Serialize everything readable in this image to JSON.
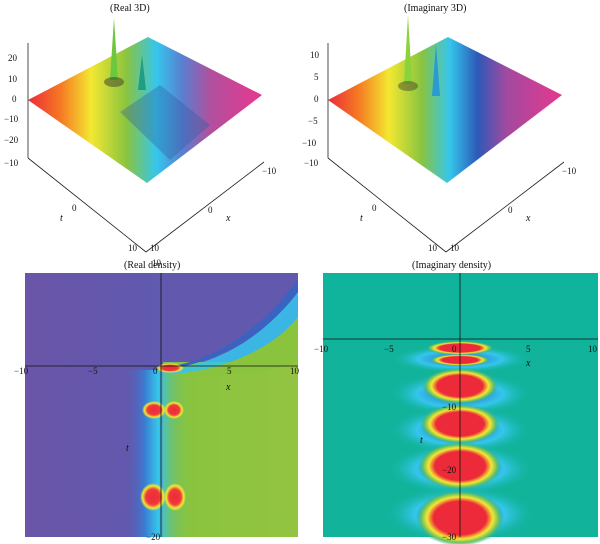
{
  "panels": {
    "real3d": {
      "title": "(Real 3D)",
      "z_ticks": [
        "20",
        "10",
        "0",
        "−10",
        "−20"
      ],
      "t_ticks": [
        "−10",
        "0",
        "10"
      ],
      "x_ticks": [
        "−10",
        "0",
        "10"
      ],
      "t_label": "t",
      "x_label": "x"
    },
    "imag3d": {
      "title": "(Imaginary 3D)",
      "z_ticks": [
        "10",
        "5",
        "0",
        "−5",
        "−10"
      ],
      "t_ticks": [
        "−10",
        "0",
        "10"
      ],
      "x_ticks": [
        "−10",
        "0",
        "10"
      ],
      "t_label": "t",
      "x_label": "x"
    },
    "realdens": {
      "title": "(Real density)",
      "x_ticks": [
        "−10",
        "−5",
        "0",
        "5",
        "10"
      ],
      "y_top": "10",
      "y_bottom": "−20",
      "x_label": "x",
      "t_label": "t"
    },
    "imagdens": {
      "title": "(Imaginary density)",
      "x_ticks": [
        "−10",
        "−5",
        "0",
        "5",
        "10"
      ],
      "y_ticks": [
        "−10",
        "−20",
        "−30"
      ],
      "x_label": "x",
      "t_label": "t"
    }
  },
  "colors": {
    "violet": "#6b55a8",
    "cyan": "#35c6ec",
    "green": "#8ac43f",
    "yellow": "#f3e831",
    "red": "#ec2a3a",
    "magenta": "#e8388d",
    "teal": "#11b39b"
  }
}
